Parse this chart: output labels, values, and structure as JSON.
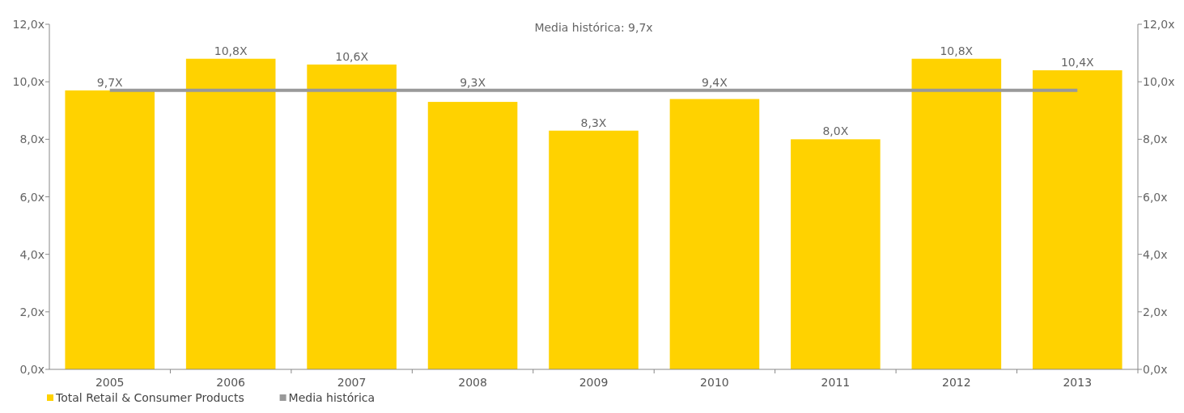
{
  "chart_data": {
    "type": "bar",
    "categories": [
      "2005",
      "2006",
      "2007",
      "2008",
      "2009",
      "2010",
      "2011",
      "2012",
      "2013"
    ],
    "series": [
      {
        "name": "Total Retail & Consumer Products",
        "color": "#ffd200",
        "values": [
          9.7,
          10.8,
          10.6,
          9.3,
          8.3,
          9.4,
          8.0,
          10.8,
          10.4
        ],
        "value_labels": [
          "9,7X",
          "10,8X",
          "10,6X",
          "9,3X",
          "8,3X",
          "9,4X",
          "8,0X",
          "10,8X",
          "10,4X"
        ]
      },
      {
        "name": "Media histórica",
        "type": "line",
        "color": "#999999",
        "values": [
          9.7,
          9.7,
          9.7,
          9.7,
          9.7,
          9.7,
          9.7,
          9.7,
          9.7
        ]
      }
    ],
    "ylim": [
      0,
      12
    ],
    "yticks": [
      {
        "value": 0,
        "label": "0,0x"
      },
      {
        "value": 2,
        "label": "2,0x"
      },
      {
        "value": 4,
        "label": "4,0x"
      },
      {
        "value": 6,
        "label": "6,0x"
      },
      {
        "value": 8,
        "label": "8,0x"
      },
      {
        "value": 10,
        "label": "10,0x"
      },
      {
        "value": 12,
        "label": "12,0x"
      }
    ],
    "y2lim": [
      0,
      12
    ],
    "y2ticks": [
      {
        "value": 0,
        "label": "0,0x"
      },
      {
        "value": 2,
        "label": "2,0x"
      },
      {
        "value": 4,
        "label": "4,0x"
      },
      {
        "value": 6,
        "label": "6,0x"
      },
      {
        "value": 8,
        "label": "8,0x"
      },
      {
        "value": 10,
        "label": "10,0x"
      },
      {
        "value": 12,
        "label": "12,0x"
      }
    ],
    "annotations": [
      "Media histórica: 9,7x"
    ],
    "legend": "bottom left",
    "grid": false
  }
}
